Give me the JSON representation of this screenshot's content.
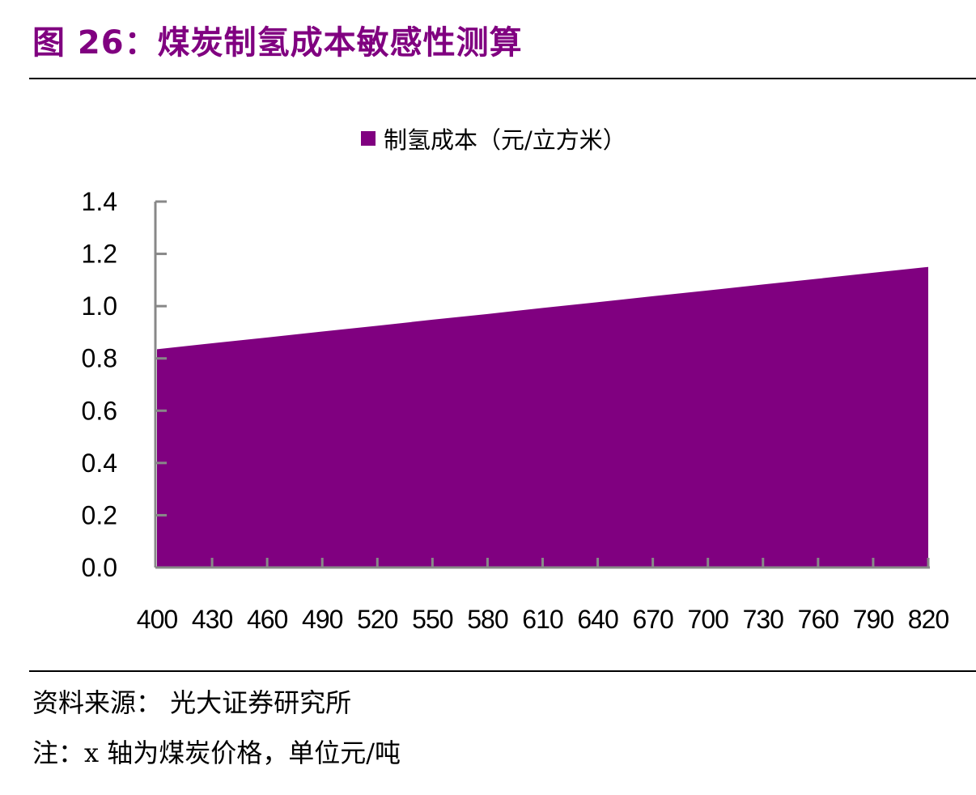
{
  "header": {
    "title": "图 26：煤炭制氢成本敏感性测算"
  },
  "footer": {
    "source": "资料来源： 光大证券研究所",
    "note": "注：x 轴为煤炭价格，单位元/吨"
  },
  "chart_data": {
    "type": "area",
    "title": "",
    "xlabel": "",
    "ylabel": "",
    "categories": [
      "400",
      "430",
      "460",
      "490",
      "520",
      "550",
      "580",
      "610",
      "640",
      "670",
      "700",
      "730",
      "760",
      "790",
      "820"
    ],
    "series": [
      {
        "name": "制氢成本（元/立方米）",
        "color": "#800080",
        "values": [
          0.835,
          0.858,
          0.88,
          0.903,
          0.925,
          0.948,
          0.97,
          0.993,
          1.015,
          1.038,
          1.06,
          1.083,
          1.105,
          1.128,
          1.15
        ]
      }
    ],
    "ylim": [
      0,
      1.4
    ],
    "yticks": [
      "0.0",
      "0.2",
      "0.4",
      "0.6",
      "0.8",
      "1.0",
      "1.2",
      "1.4"
    ],
    "grid": false,
    "legend": "top-center"
  }
}
